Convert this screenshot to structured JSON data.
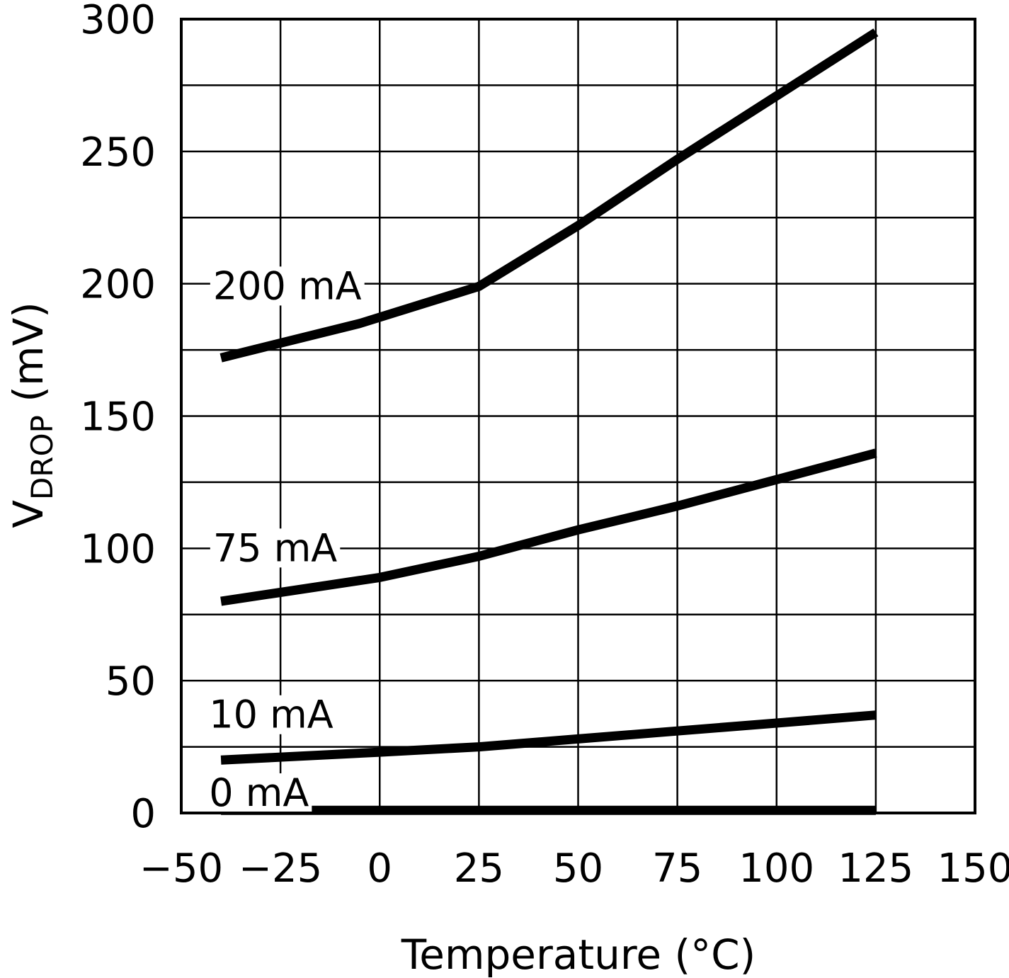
{
  "chart_data": {
    "type": "line",
    "title": "",
    "xlabel": "Temperature (°C)",
    "ylabel_main": "V",
    "ylabel_sub": "DROP",
    "ylabel_unit": " (mV)",
    "xlim": [
      -50,
      150
    ],
    "ylim": [
      0,
      300
    ],
    "xticks": [
      -50,
      -25,
      0,
      25,
      50,
      75,
      100,
      125,
      150
    ],
    "xtick_labels": [
      "−50",
      "−25",
      "0",
      "25",
      "50",
      "75",
      "100",
      "125",
      "150"
    ],
    "yticks": [
      0,
      50,
      100,
      150,
      200,
      250,
      300
    ],
    "ytick_labels": [
      "0",
      "50",
      "100",
      "150",
      "200",
      "250",
      "300"
    ],
    "grid": true,
    "grid_x_step": 25,
    "grid_y_step": 25,
    "line_color": "#000000",
    "series": [
      {
        "name": "200 mA",
        "label_anchor": [
          -42,
          199
        ],
        "points": [
          [
            -40,
            172
          ],
          [
            -5,
            185
          ],
          [
            25,
            199
          ],
          [
            50,
            222
          ],
          [
            75,
            247
          ],
          [
            100,
            271
          ],
          [
            125,
            295
          ]
        ]
      },
      {
        "name": "75 mA",
        "label_anchor": [
          -42,
          100
        ],
        "points": [
          [
            -40,
            80
          ],
          [
            0,
            89
          ],
          [
            25,
            97
          ],
          [
            50,
            107
          ],
          [
            75,
            116
          ],
          [
            100,
            126
          ],
          [
            125,
            136
          ]
        ]
      },
      {
        "name": "10 mA",
        "label_anchor": [
          -43,
          37
        ],
        "points": [
          [
            -40,
            20
          ],
          [
            0,
            23
          ],
          [
            25,
            25
          ],
          [
            50,
            28
          ],
          [
            75,
            31
          ],
          [
            100,
            34
          ],
          [
            125,
            37
          ]
        ]
      },
      {
        "name": "0 mA",
        "label_anchor": [
          -43,
          7.5
        ],
        "points": [
          [
            -40,
            1
          ],
          [
            125,
            1
          ]
        ]
      }
    ]
  }
}
